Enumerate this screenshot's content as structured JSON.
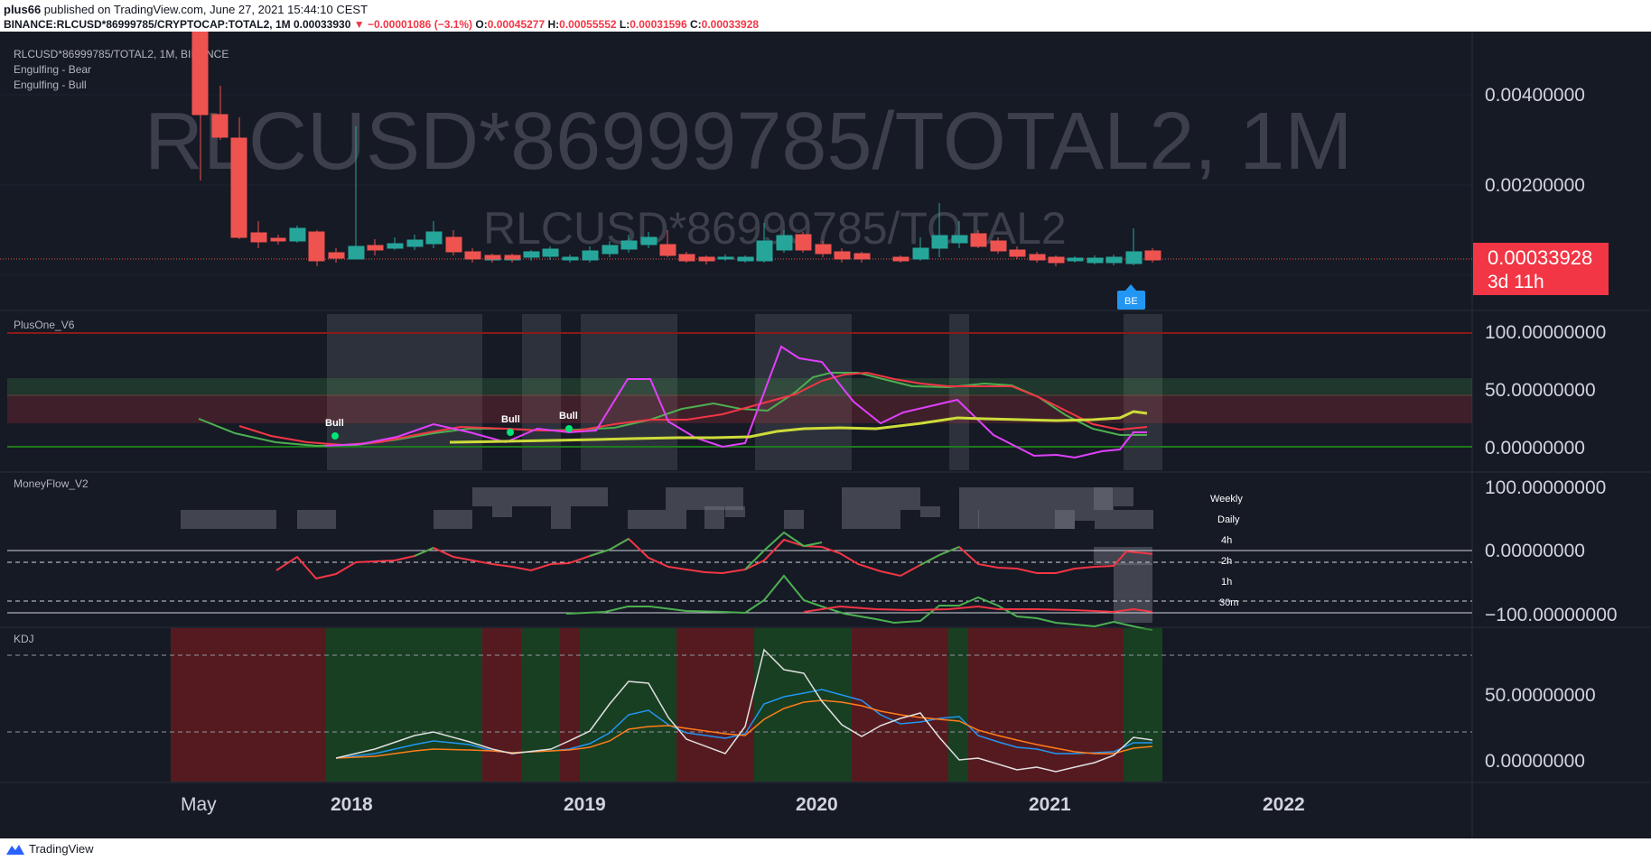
{
  "header": {
    "publisher": "plus66",
    "published_text": " published on TradingView.com, June 27, 2021 15:44:10 CEST",
    "symbol": "BINANCE:RLCUSD*86999785/CRYPTOCAP:TOTAL2, 1M",
    "last": "0.00033930",
    "change": "−0.00001086 (−3.1%)",
    "o_label": "O:",
    "o_value": "0.00045277",
    "h_label": "H:",
    "h_value": "0.00055552",
    "l_label": "L:",
    "l_value": "0.00031596",
    "c_label": "C:",
    "c_value": "0.00033928"
  },
  "main_pane": {
    "legend_title": "RLCUSD*86999785/TOTAL2, 1M, BINANCE",
    "indicators": [
      "Engulfing - Bear",
      "Engulfing - Bull"
    ],
    "watermark": "RLCUSD*86999785/TOTAL2, 1M",
    "watermark_small": "RLCUSD*86999785/TOTAL2",
    "price_labels": [
      "0.00400000",
      "0.00200000"
    ],
    "current_price": "0.00033928",
    "countdown": "3d 11h",
    "badge": "BE"
  },
  "plusone_pane": {
    "title": "PlusOne_V6",
    "labels": [
      "100.00000000",
      "50.00000000",
      "0.00000000"
    ],
    "signals": [
      "Bull",
      "Bull",
      "Bull"
    ]
  },
  "moneyflow_pane": {
    "title": "MoneyFlow_V2",
    "labels": [
      "100.00000000",
      "0.00000000",
      "−100.00000000"
    ],
    "timeframes": [
      "Weekly",
      "Daily",
      "4h",
      "2h",
      "1h",
      "30m"
    ]
  },
  "kdj_pane": {
    "title": "KDJ",
    "labels": [
      "50.00000000",
      "0.00000000"
    ]
  },
  "time_axis": [
    "May",
    "2018",
    "2019",
    "2020",
    "2021",
    "2022"
  ],
  "footer": {
    "brand": "TradingView"
  },
  "colors": {
    "bg": "#161a25",
    "up": "#26a69a",
    "down": "#ef5350",
    "magenta": "#e040fb",
    "green": "#4caf50",
    "yellow": "#cddc39",
    "red": "#f23645",
    "badge": "#2196f3"
  }
}
